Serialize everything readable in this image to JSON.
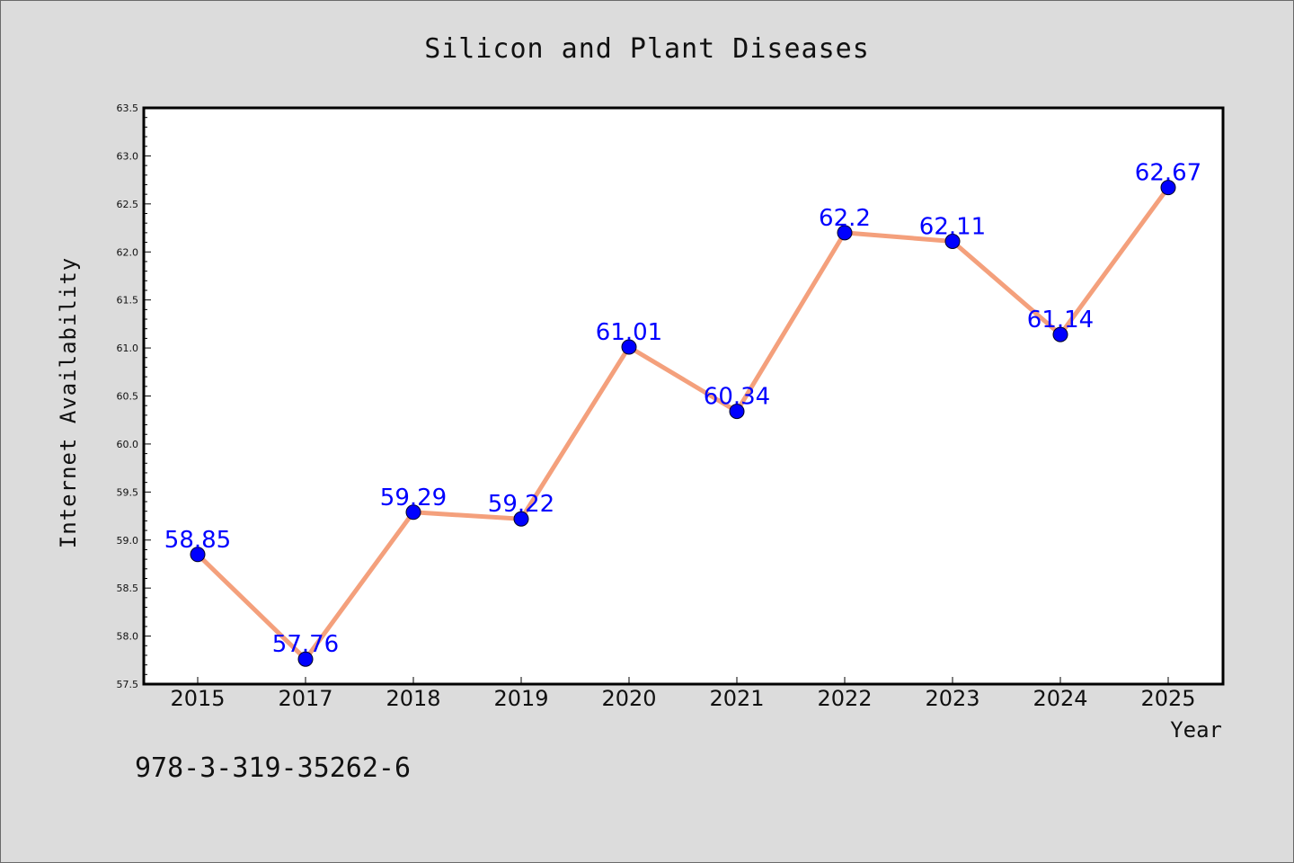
{
  "chart_data": {
    "type": "line",
    "title": "Silicon and Plant Diseases",
    "xlabel": "Year",
    "ylabel": "Internet Availability",
    "categories": [
      "2015",
      "2017",
      "2018",
      "2019",
      "2020",
      "2021",
      "2022",
      "2023",
      "2024",
      "2025"
    ],
    "series": [
      {
        "values": [
          58.85,
          57.76,
          59.29,
          59.22,
          61.01,
          60.34,
          62.2,
          62.11,
          61.14,
          62.67
        ],
        "data_labels": [
          "58.85",
          "57.76",
          "59.29",
          "59.22",
          "61.01",
          "60.34",
          "62.2",
          "62.11",
          "61.14",
          "62.67"
        ],
        "line_color": "#f4a07c",
        "marker_color": "#0000ff"
      }
    ],
    "ylim": [
      57.5,
      63.5
    ],
    "yticks": [
      "57.5",
      "58.0",
      "58.5",
      "59.0",
      "59.5",
      "60.0",
      "60.5",
      "61.0",
      "61.5",
      "62.0",
      "62.5",
      "63.0",
      "63.5"
    ],
    "grid": false,
    "legend": false
  },
  "footer": {
    "isbn": "978-3-319-35262-6"
  },
  "colors": {
    "background": "#dcdcdc",
    "plot_background": "#ffffff",
    "line": "#f4a07c",
    "marker": "#0000ff",
    "data_label": "#0000ff"
  }
}
